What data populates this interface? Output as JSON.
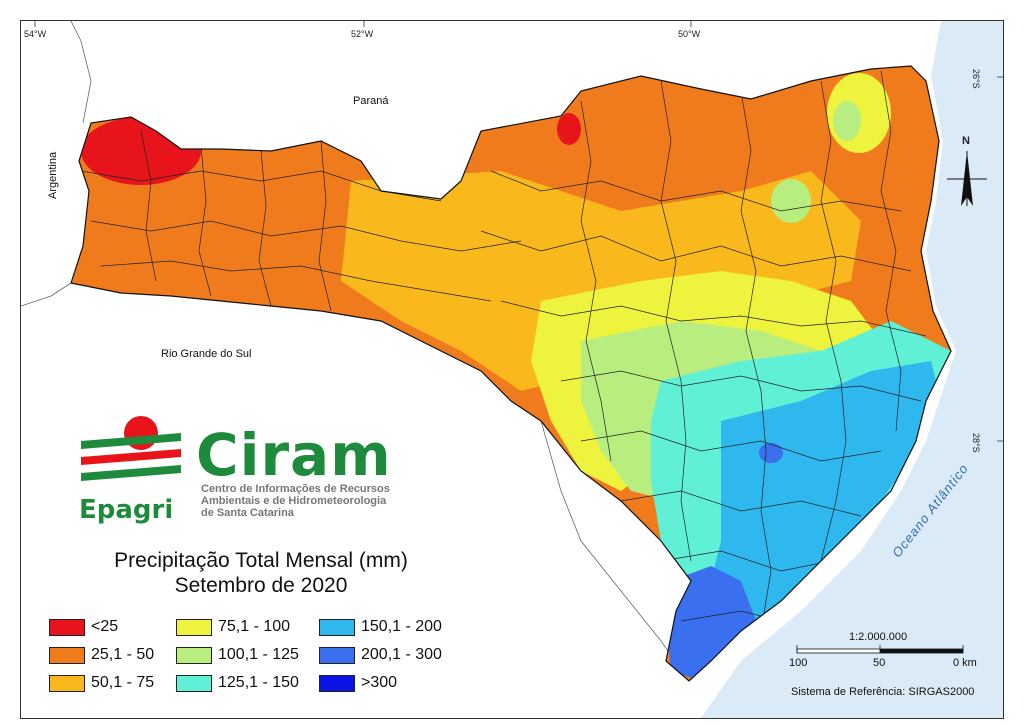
{
  "map": {
    "title_line1": "Precipitação Total Mensal (mm)",
    "title_line2": "Setembro de 2020",
    "coordinates": {
      "lon_54": "54°W",
      "lon_52": "52°W",
      "lon_50": "50°W",
      "lat_26": "26°S",
      "lat_28": "28°S"
    },
    "regions": {
      "north": "Paraná",
      "south": "Rio Grande do Sul",
      "west": "Argentina",
      "ocean": "Oceano Atlântico"
    },
    "north_arrow_label": "N",
    "scale": {
      "ratio": "1:2.000.000",
      "tick_100": "100",
      "tick_50": "50",
      "tick_0": "0 km"
    },
    "reference_system": "Sistema de Referência: SIRGAS2000"
  },
  "logo": {
    "name": "Ciram",
    "org": "Epagri",
    "subtitle_line1": "Centro de Informações de Recursos",
    "subtitle_line2": "Ambientais e de Hidrometeorologia",
    "subtitle_line3": "de Santa Catarina"
  },
  "legend": [
    {
      "label": "<25",
      "color": "#e8141b"
    },
    {
      "label": "25,1 - 50",
      "color": "#f07b1d"
    },
    {
      "label": "50,1 - 75",
      "color": "#f9b81b"
    },
    {
      "label": "75,1 - 100",
      "color": "#eef33d"
    },
    {
      "label": "100,1 - 125",
      "color": "#b8ee80"
    },
    {
      "label": "125,1 - 150",
      "color": "#5ff0d6"
    },
    {
      "label": "150,1 - 200",
      "color": "#2fb8ee"
    },
    {
      "label": "200,1 - 300",
      "color": "#3a6ff0"
    },
    {
      "label": ">300",
      "color": "#0a14e6"
    }
  ]
}
